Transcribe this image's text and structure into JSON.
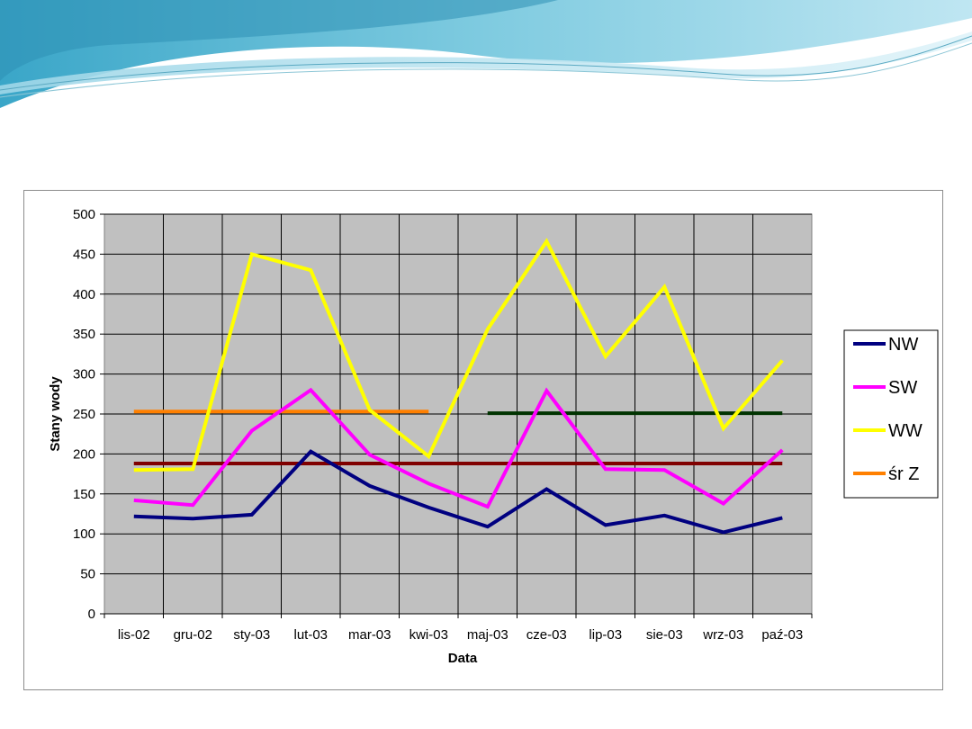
{
  "chart_data": {
    "type": "line",
    "xlabel": "Data",
    "ylabel": "Stany wody",
    "ylim": [
      0,
      500
    ],
    "yticks": [
      0,
      50,
      100,
      150,
      200,
      250,
      300,
      350,
      400,
      450,
      500
    ],
    "grid": true,
    "legend_position": "right",
    "categories": [
      "lis-02",
      "gru-02",
      "sty-03",
      "lut-03",
      "mar-03",
      "kwi-03",
      "maj-03",
      "cze-03",
      "lip-03",
      "sie-03",
      "wrz-03",
      "paź-03"
    ],
    "series": [
      {
        "name": "NW",
        "color": "#000080",
        "values": [
          122,
          119,
          124,
          203,
          160,
          133,
          109,
          156,
          111,
          123,
          102,
          120
        ]
      },
      {
        "name": "SW",
        "color": "#ff00ff",
        "values": [
          142,
          136,
          229,
          280,
          199,
          163,
          134,
          279,
          181,
          180,
          138,
          205
        ]
      },
      {
        "name": "WW",
        "color": "#ffff00",
        "values": [
          180,
          181,
          450,
          430,
          255,
          197,
          356,
          466,
          322,
          409,
          232,
          317
        ]
      },
      {
        "name": "śr Z",
        "color": "#ff8000",
        "values": [
          253,
          253,
          253,
          253,
          253,
          253,
          null,
          null,
          null,
          null,
          null,
          null
        ]
      }
    ],
    "reference_lines": [
      {
        "color": "#800000",
        "value": 188,
        "from": "lis-02",
        "to": "paź-03"
      },
      {
        "color": "#003300",
        "value": 251,
        "from": "maj-03",
        "to": "paź-03"
      }
    ]
  }
}
